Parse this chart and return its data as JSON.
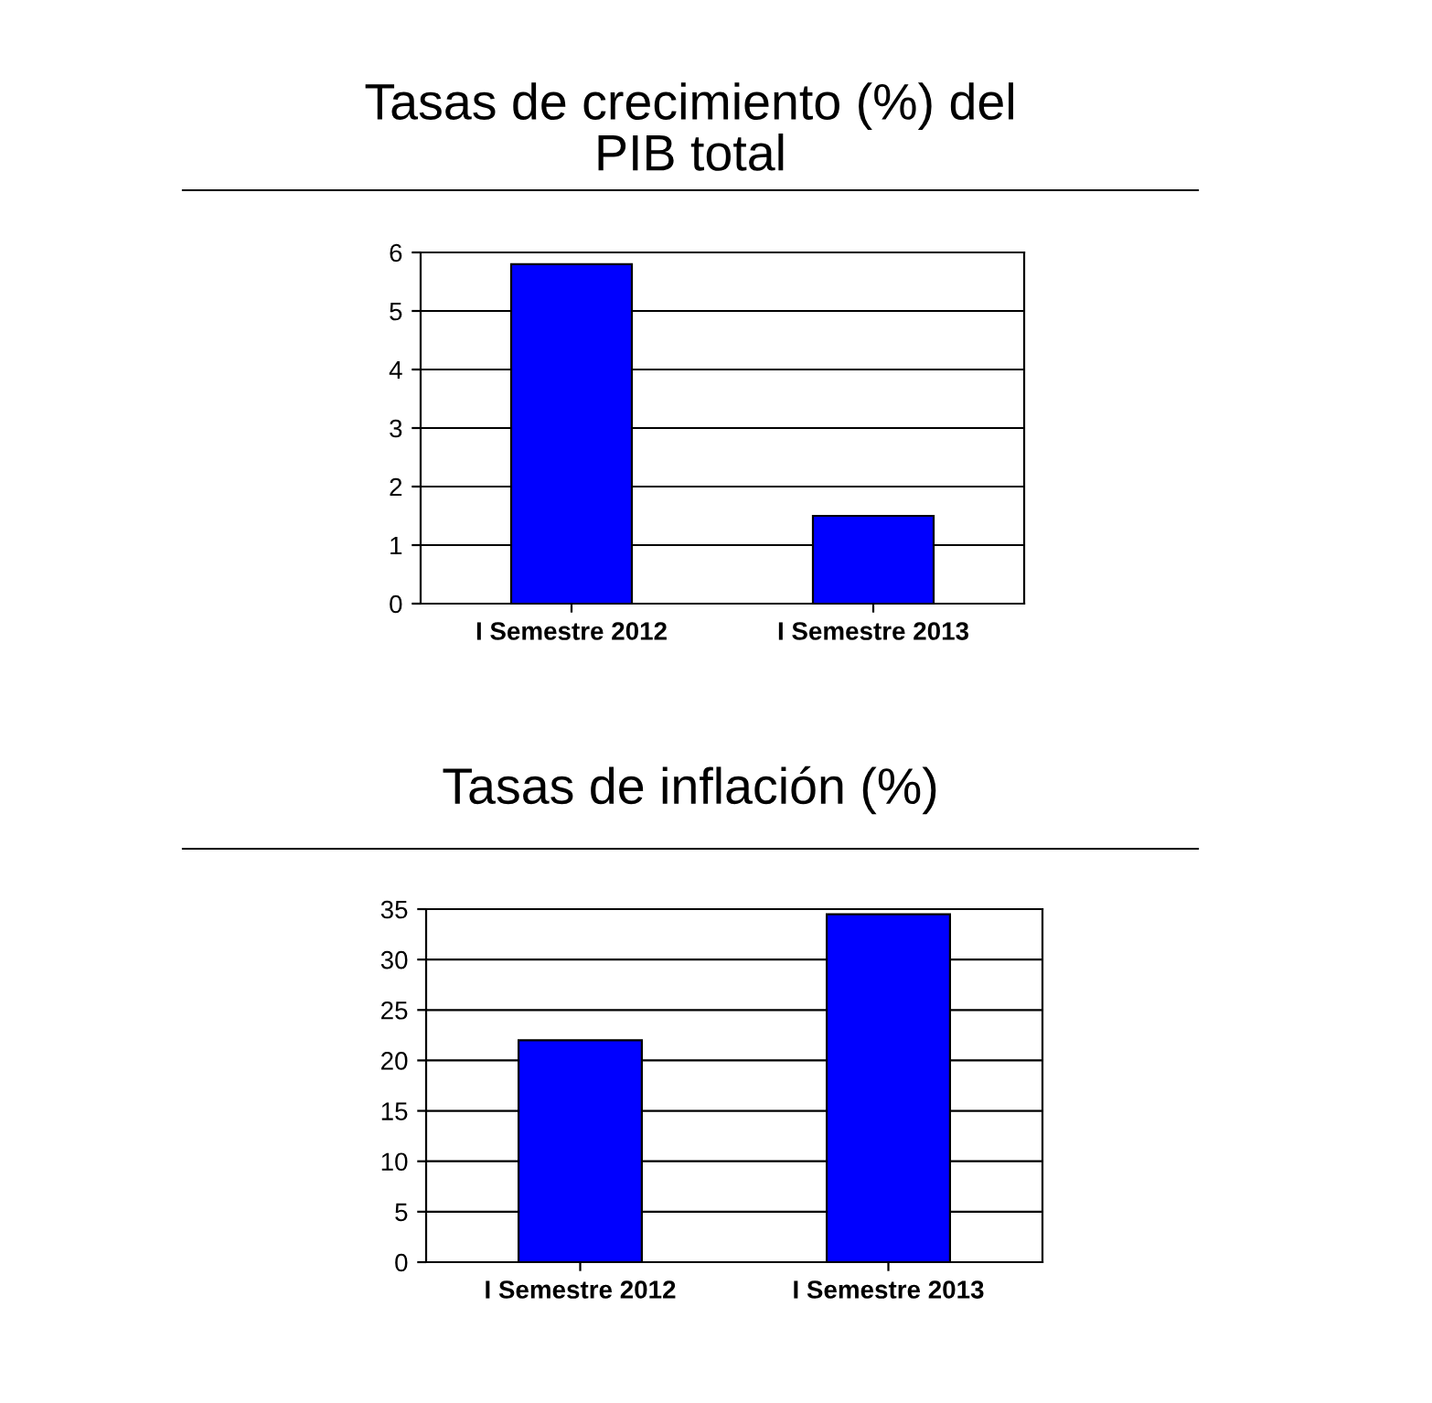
{
  "chart_data": [
    {
      "type": "bar",
      "title": "Tasas de crecimiento (%) del\nPIB total",
      "categories": [
        "I Semestre 2012",
        "I Semestre 2013"
      ],
      "values": [
        5.8,
        1.5
      ],
      "color": "#0000ff",
      "ylim": [
        0,
        6
      ],
      "yticks": [
        0,
        1,
        2,
        3,
        4,
        5,
        6
      ],
      "grid": "y"
    },
    {
      "type": "bar",
      "title": "Tasas de inflación (%)",
      "categories": [
        "I Semestre 2012",
        "I Semestre 2013"
      ],
      "values": [
        22,
        34.5
      ],
      "color": "#0000ff",
      "ylim": [
        0,
        35
      ],
      "yticks": [
        0,
        5,
        10,
        15,
        20,
        25,
        30,
        35
      ],
      "grid": "y"
    }
  ]
}
